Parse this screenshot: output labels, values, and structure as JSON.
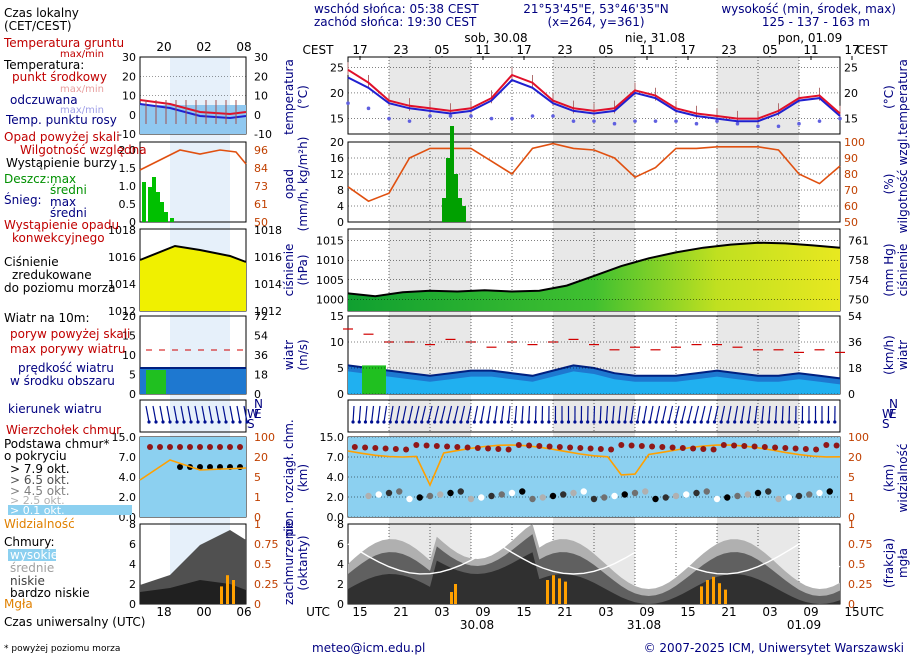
{
  "header": {
    "sunrise": "wschód słońca: 05:38 CEST",
    "sunset": "zachód słońca: 19:30 CEST",
    "coords": "21°53'45\"E, 53°46'35\"N",
    "grid": "(x=264, y=361)",
    "elev_title": "wysokość (min, środek, max)",
    "elev_values": "125 - 137 - 163 m"
  },
  "time_axis": {
    "top_label": "CEST",
    "bottom_label": "UTC",
    "top_hours": [
      "17",
      "23",
      "05",
      "11",
      "17",
      "23",
      "05",
      "11",
      "17",
      "23",
      "05",
      "11",
      "17"
    ],
    "bottom_hours": [
      "15",
      "21",
      "03",
      "09",
      "15",
      "21",
      "03",
      "09",
      "15",
      "21",
      "03",
      "09",
      "15"
    ],
    "day_labels": [
      "sob, 30.08",
      "nie, 31.08",
      "pon, 01.09"
    ],
    "bottom_dates": [
      "30.08",
      "31.08",
      "01.09"
    ]
  },
  "legend": {
    "local_time": "Czas lokalny",
    "local_time_sub": "(CET/CEST)",
    "legend_hours_top": [
      "20",
      "02",
      "08"
    ],
    "legend_hours_bottom": [
      "18",
      "00",
      "06"
    ],
    "soil_temp": "Temperatura gruntu",
    "soil_temp_sub": "max/min",
    "temperature": "Temperatura:",
    "mid_point": "punkt środkowy",
    "max_min": "max/min",
    "felt": "odczuwana",
    "felt_sub": "max/min",
    "dew_point": "Temp. punktu rosy",
    "precip_above": "Opad powyżej skali",
    "humidity": "Wilgotność względna",
    "storm": "Wystąpienie burzy",
    "rain": "Deszcz:",
    "rain_max": "max",
    "rain_avg": "średni",
    "snow": "Śnieg:",
    "snow_max": "max",
    "snow_avg": "średni",
    "conv": "Wystąpienie opadu",
    "conv2": "konwekcyjnego",
    "pressure1": "Ciśnienie",
    "pressure2": "zredukowane",
    "pressure3": "do poziomu morza",
    "wind_title": "Wiatr na 10m:",
    "gust_above": "poryw powyżej skali",
    "max_gust": "max porywy wiatru",
    "wind_speed1": "prędkość wiatru",
    "wind_speed2": "w środku obszaru",
    "wind_dir": "kierunek wiatru",
    "cloud_top": "Wierzchołek chmur",
    "cloud_base1": "Podstawa chmur*",
    "cloud_base2": "o pokryciu",
    "okt": [
      "> 7.9 okt.",
      "> 6.5 okt.",
      "> 4.5 okt.",
      "> 2.5 okt.",
      "> 0.1 okt."
    ],
    "visibility": "Widzialność",
    "clouds": "Chmury:",
    "high": "wysokie",
    "middle": "średnie",
    "low": "niskie",
    "very_low": "bardzo niskie",
    "fog": "Mgła",
    "utc": "Czas uniwersalny (UTC)",
    "footnote": "* powyżej poziomu morza"
  },
  "panels": {
    "temperature": {
      "left_label": "temperatura",
      "left_unit": "(°C)",
      "right_unit": "(°C)",
      "right_label": "temperatura",
      "ticks": [
        "25",
        "20",
        "15"
      ]
    },
    "precip": {
      "left_label": "opad",
      "left_unit": "(mm/h, kg/m²h)",
      "right_label": "wilgotność wzgl.",
      "right_unit": "(%)",
      "ticks_left": [
        "20",
        "16",
        "12",
        "8",
        "4",
        "0"
      ],
      "ticks_right": [
        "100",
        "90",
        "80",
        "70",
        "60",
        "50"
      ]
    },
    "pressure": {
      "left_label": "ciśnienie",
      "left_unit": "(hPa)",
      "right_label": "ciśnienie",
      "right_unit": "(mm Hg)",
      "ticks_left": [
        "1015",
        "1010",
        "1005",
        "1000"
      ],
      "ticks_right": [
        "761",
        "758",
        "754",
        "750"
      ]
    },
    "wind": {
      "left_label": "wiatr",
      "left_unit": "(m/s)",
      "right_label": "wiatr",
      "right_unit": "(km/h)",
      "ticks_left": [
        "15",
        "10",
        "5",
        "0"
      ],
      "ticks_right": [
        "54",
        "36",
        "18",
        "0"
      ]
    },
    "cloudbase": {
      "left_label": "pion. rozciągł. chm.",
      "left_unit": "(km)",
      "right_label": "widzialność",
      "right_unit": "(km)",
      "ticks_left": [
        "15.0",
        "7.0",
        "4.0",
        "2.0",
        "0.0"
      ],
      "ticks_right": [
        "100",
        "20",
        "5",
        "1",
        "0"
      ]
    },
    "clouds": {
      "left_label": "zachmurzenie",
      "left_unit": "(oktanty)",
      "right_label": "mgła",
      "right_unit": "(frakcja)",
      "ticks_left": [
        "8",
        "6",
        "4",
        "2",
        "0"
      ],
      "ticks_right": [
        "1",
        "0.75",
        "0.5",
        "0.25",
        "0"
      ]
    }
  },
  "legend_ticks": {
    "temp_left": [
      "30",
      "20",
      "10",
      "0",
      "-10"
    ],
    "temp_right": [
      "30",
      "20",
      "10",
      "0",
      "-10"
    ],
    "precip_left": [
      "2.0",
      "1.5",
      "1.0",
      "0.5",
      "0"
    ],
    "precip_right": [
      "96",
      "84",
      "73",
      "61",
      "50"
    ],
    "press_left": [
      "1018",
      "1016",
      "1014",
      "1012"
    ],
    "press_right": [
      "1018",
      "1016",
      "1014",
      "1012"
    ],
    "wind_left": [
      "20",
      "15",
      "10",
      "5",
      "0"
    ],
    "wind_right": [
      "72",
      "54",
      "36",
      "18",
      "0"
    ],
    "cb_left": [
      "15.0",
      "7.0",
      "4.0",
      "2.0",
      "0.0"
    ],
    "cb_right": [
      "100",
      "20",
      "5",
      "1",
      "0"
    ],
    "cl_left": [
      "8",
      "6",
      "4",
      "2",
      "0"
    ],
    "cl_right": [
      "1",
      "0.75",
      "0.5",
      "0.25",
      "0"
    ]
  },
  "compass": {
    "n": "N",
    "w": "W",
    "s": "S",
    "e": "E"
  },
  "footer": {
    "email": "meteo@icm.edu.pl",
    "copyright": "© 2007-2025 ICM, Uniwersytet Warszawski"
  },
  "colors": {
    "temp": "#e0102a",
    "felt": "#2020d0",
    "dew": "#6060e0",
    "humidity": "#e05010",
    "rain": "#00a000",
    "pressure_line": "#000000",
    "wind_fill": "#0a60c8",
    "gust": "#d00000",
    "cloud_bg": "#8cd0f0",
    "fog": "#ffa000"
  },
  "chart_data": [
    {
      "type": "line",
      "name_key": "temperature",
      "x": [
        0,
        3,
        6,
        9,
        12,
        15,
        18,
        21,
        24,
        27,
        30,
        33,
        36,
        39,
        42,
        45,
        48,
        51,
        54,
        57,
        60,
        63,
        66,
        69,
        72
      ],
      "series": [
        {
          "name": "punkt środkowy",
          "values": [
            24.5,
            22,
            18.5,
            17.5,
            17,
            16.5,
            17,
            19,
            23.5,
            22,
            18.5,
            17,
            16.5,
            17,
            20.5,
            19.5,
            17,
            16,
            15.5,
            15,
            15,
            16.5,
            19,
            19.5,
            16
          ]
        },
        {
          "name": "odczuwana",
          "values": [
            23,
            21,
            18,
            17,
            16.5,
            16,
            16.5,
            18.5,
            22.5,
            21,
            18,
            16.5,
            16,
            16.5,
            20,
            19,
            16.5,
            15.5,
            15,
            14.5,
            14.5,
            16,
            18.5,
            19,
            15.5
          ]
        },
        {
          "name": "Temp. punktu rosy",
          "values": [
            18,
            17,
            15,
            14.5,
            15.5,
            15.5,
            15.5,
            15,
            15,
            15.5,
            15.5,
            14.5,
            14.5,
            14,
            14.5,
            14.5,
            14.5,
            14,
            14.5,
            14,
            13.5,
            13.5,
            14,
            14.5,
            15
          ]
        }
      ],
      "ylim": [
        12,
        27
      ]
    },
    {
      "type": "line",
      "name_key": "humidity",
      "x": [
        0,
        3,
        6,
        9,
        12,
        15,
        18,
        21,
        24,
        27,
        30,
        33,
        36,
        39,
        42,
        45,
        48,
        51,
        54,
        57,
        60,
        63,
        66,
        69,
        72
      ],
      "values": [
        72,
        63,
        68,
        90,
        96,
        96,
        96,
        88,
        80,
        96,
        99,
        96,
        95,
        90,
        78,
        84,
        96,
        96,
        97,
        97,
        97,
        95,
        80,
        74,
        85
      ],
      "ylim": [
        50,
        100
      ]
    },
    {
      "type": "area",
      "name_key": "pressure",
      "x": [
        0,
        4,
        8,
        12,
        16,
        20,
        24,
        28,
        32,
        36,
        40,
        44,
        48,
        52,
        56,
        60,
        64,
        68,
        72
      ],
      "values": [
        1001.5,
        1000.8,
        1001.8,
        1002.2,
        1002.0,
        1002.3,
        1002.0,
        1002.2,
        1003.5,
        1006,
        1008.5,
        1010.5,
        1012,
        1013.2,
        1014,
        1014.5,
        1014.3,
        1013.8,
        1013.2
      ],
      "ylim": [
        997,
        1018
      ]
    },
    {
      "type": "area",
      "name_key": "wind",
      "x": [
        0,
        3,
        6,
        9,
        12,
        15,
        18,
        21,
        24,
        27,
        30,
        33,
        36,
        39,
        42,
        45,
        48,
        51,
        54,
        57,
        60,
        63,
        66,
        69,
        72
      ],
      "values": [
        5.5,
        5,
        4.5,
        4,
        3.5,
        4,
        4.5,
        4.5,
        4,
        3.5,
        4.5,
        5.5,
        5,
        4,
        3.5,
        3.5,
        3.5,
        4,
        4.5,
        4,
        3.5,
        3.5,
        4,
        3.5,
        3
      ],
      "gust": [
        12.5,
        11.5,
        10,
        10,
        9.5,
        10.5,
        10,
        9,
        10,
        9.5,
        10,
        10.5,
        9.5,
        8.5,
        9,
        8.5,
        9,
        9.5,
        9.5,
        9,
        8.5,
        8.5,
        8,
        8.5,
        8
      ],
      "ylim": [
        0,
        15
      ]
    },
    {
      "type": "bar",
      "name_key": "fog",
      "categories": [
        "21",
        "00",
        "03"
      ],
      "values": [
        0.22,
        0.36,
        0.3
      ],
      "ylim": [
        0,
        1
      ]
    }
  ]
}
